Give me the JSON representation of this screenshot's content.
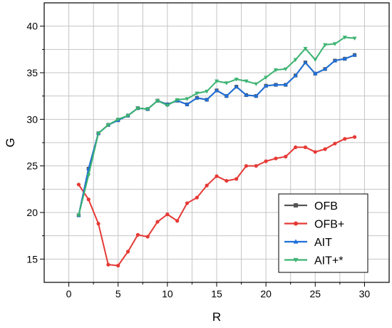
{
  "chart_data": {
    "type": "line",
    "xlabel": "R",
    "ylabel": "G",
    "xlim": [
      -2.5,
      32.5
    ],
    "ylim": [
      12.5,
      42.5
    ],
    "xticks": [
      0,
      5,
      10,
      15,
      20,
      25,
      30
    ],
    "yticks": [
      15,
      20,
      25,
      30,
      35,
      40
    ],
    "grid": true,
    "legend_position": "bottom-right",
    "x": [
      1,
      2,
      3,
      4,
      5,
      6,
      7,
      8,
      9,
      10,
      11,
      12,
      13,
      14,
      15,
      16,
      17,
      18,
      19,
      20,
      21,
      22,
      23,
      24,
      25,
      26,
      27,
      28,
      29
    ],
    "series": [
      {
        "name": "OFB",
        "color": "#555555",
        "marker": "square",
        "values": [
          19.7,
          24.7,
          28.5,
          29.4,
          29.9,
          30.4,
          31.2,
          31.1,
          32.0,
          31.6,
          32.0,
          31.6,
          32.3,
          32.1,
          33.1,
          32.5,
          33.5,
          32.6,
          32.5,
          33.6,
          33.7,
          33.7,
          34.7,
          36.1,
          34.9,
          35.4,
          36.3,
          36.5,
          36.9
        ]
      },
      {
        "name": "OFB+",
        "color": "#e53935",
        "marker": "circle",
        "values": [
          23.0,
          21.4,
          18.8,
          14.4,
          14.3,
          15.8,
          17.6,
          17.4,
          19.0,
          19.8,
          19.1,
          21.0,
          21.6,
          22.9,
          23.9,
          23.4,
          23.6,
          25.0,
          25.0,
          25.5,
          25.8,
          26.0,
          27.0,
          27.0,
          26.5,
          26.8,
          27.4,
          27.9,
          28.1
        ]
      },
      {
        "name": "AIT",
        "color": "#1e6fd9",
        "marker": "triangle-up",
        "values": [
          19.7,
          24.7,
          28.5,
          29.4,
          29.9,
          30.4,
          31.2,
          31.1,
          32.0,
          31.6,
          32.0,
          31.6,
          32.3,
          32.1,
          33.1,
          32.5,
          33.5,
          32.6,
          32.5,
          33.6,
          33.7,
          33.7,
          34.7,
          36.1,
          34.9,
          35.4,
          36.3,
          36.5,
          36.9
        ]
      },
      {
        "name": "AIT+*",
        "color": "#3cb371",
        "marker": "triangle-down",
        "values": [
          19.7,
          24.0,
          28.5,
          29.4,
          30.0,
          30.4,
          31.2,
          31.1,
          32.0,
          31.5,
          32.1,
          32.2,
          32.8,
          33.0,
          34.1,
          33.9,
          34.3,
          34.1,
          33.8,
          34.5,
          35.3,
          35.4,
          36.4,
          37.6,
          36.4,
          38.0,
          38.1,
          38.8,
          38.7
        ]
      }
    ]
  }
}
